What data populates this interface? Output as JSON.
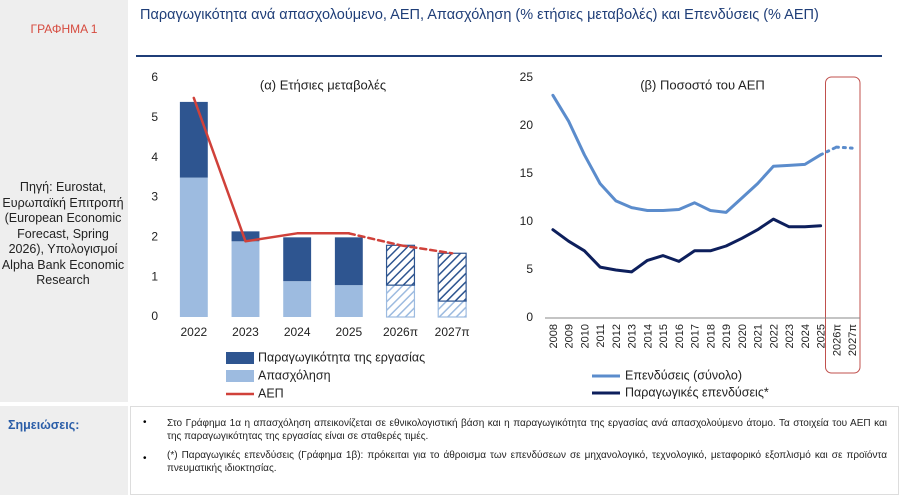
{
  "label": "ΓΡΑΦΗΜΑ 1",
  "title": "Παραγωγικότητα ανά απασχολούμενο, ΑΕΠ, Απασχόληση (% ετήσιες μεταβολές) και Επενδύσεις (% ΑΕΠ)",
  "source": "Πηγή: Eurostat, Ευρωπαϊκή Επιτροπή (European Economic Forecast, Spring 2026), Υπολογισμοί Alpha Bank Economic Research",
  "notes": {
    "heading": "Σημειώσεις:",
    "items": [
      "Στο Γράφημα 1α η απασχόληση απεικονίζεται σε εθνικολογιστική βάση και η παραγωγικότητα της εργασίας ανά απασχολούμενο άτομο. Τα στοιχεία του ΑΕΠ και της παραγωγικότητας της εργασίας είναι σε σταθερές τιμές.",
      "(*) Παραγωγικές επενδύσεις (Γράφημα 1β): πρόκειται για το άθροισμα των επενδύσεων σε μηχανολογικό, τεχνολογικό, μεταφορικό εξοπλισμό και σε προϊόντα πνευματικής ιδιοκτησίας."
    ]
  },
  "chart_data": [
    {
      "type": "bar",
      "stacked": true,
      "title": "(α) Ετήσιες μεταβολές",
      "categories": [
        "2022",
        "2023",
        "2024",
        "2025",
        "2026π",
        "2027π"
      ],
      "forecast_from": "2026π",
      "series": [
        {
          "name": "Απασχόληση",
          "color": "#9dbbe0",
          "values": [
            3.5,
            1.9,
            0.9,
            0.8,
            0.8,
            0.4
          ]
        },
        {
          "name": "Παραγωγικότητα της εργασίας",
          "color": "#2e5590",
          "values": [
            1.9,
            0.25,
            1.1,
            1.2,
            1.0,
            1.2
          ]
        },
        {
          "name": "ΑΕΠ",
          "type": "line",
          "color": "#d0413a",
          "values": [
            5.5,
            1.9,
            2.1,
            2.1,
            1.8,
            1.6
          ]
        }
      ],
      "legend_order": [
        "Παραγωγικότητα της εργασίας",
        "Απασχόληση",
        "ΑΕΠ"
      ],
      "ylim": [
        0,
        6
      ],
      "yticks": [
        0,
        1,
        2,
        3,
        4,
        5,
        6
      ]
    },
    {
      "type": "line",
      "title": "(β) Ποσοστό του ΑΕΠ",
      "categories": [
        "2008",
        "2009",
        "2010",
        "2011",
        "2012",
        "2013",
        "2014",
        "2015",
        "2016",
        "2017",
        "2018",
        "2019",
        "2020",
        "2021",
        "2022",
        "2023",
        "2024",
        "2025",
        "2026π",
        "2027π"
      ],
      "forecast_from": "2026π",
      "series": [
        {
          "name": "Επενδύσεις (σύνολο)",
          "color": "#5b8ccc",
          "values": [
            23.2,
            20.5,
            17,
            14,
            12.2,
            11.5,
            11.2,
            11.2,
            11.3,
            12,
            11.2,
            11,
            12.5,
            14,
            15.8,
            15.9,
            16,
            17,
            17.8,
            17.7
          ]
        },
        {
          "name": "Παραγωγικές επενδύσεις*",
          "color": "#0d1f5c",
          "values": [
            9.2,
            8,
            7,
            5.3,
            5,
            4.8,
            6,
            6.5,
            5.9,
            7,
            7,
            7.5,
            8.3,
            9.2,
            10.3,
            9.5,
            9.5,
            9.6,
            null,
            null
          ]
        }
      ],
      "ylim": [
        0,
        25
      ],
      "yticks": [
        0,
        5,
        10,
        15,
        20,
        25
      ]
    }
  ]
}
